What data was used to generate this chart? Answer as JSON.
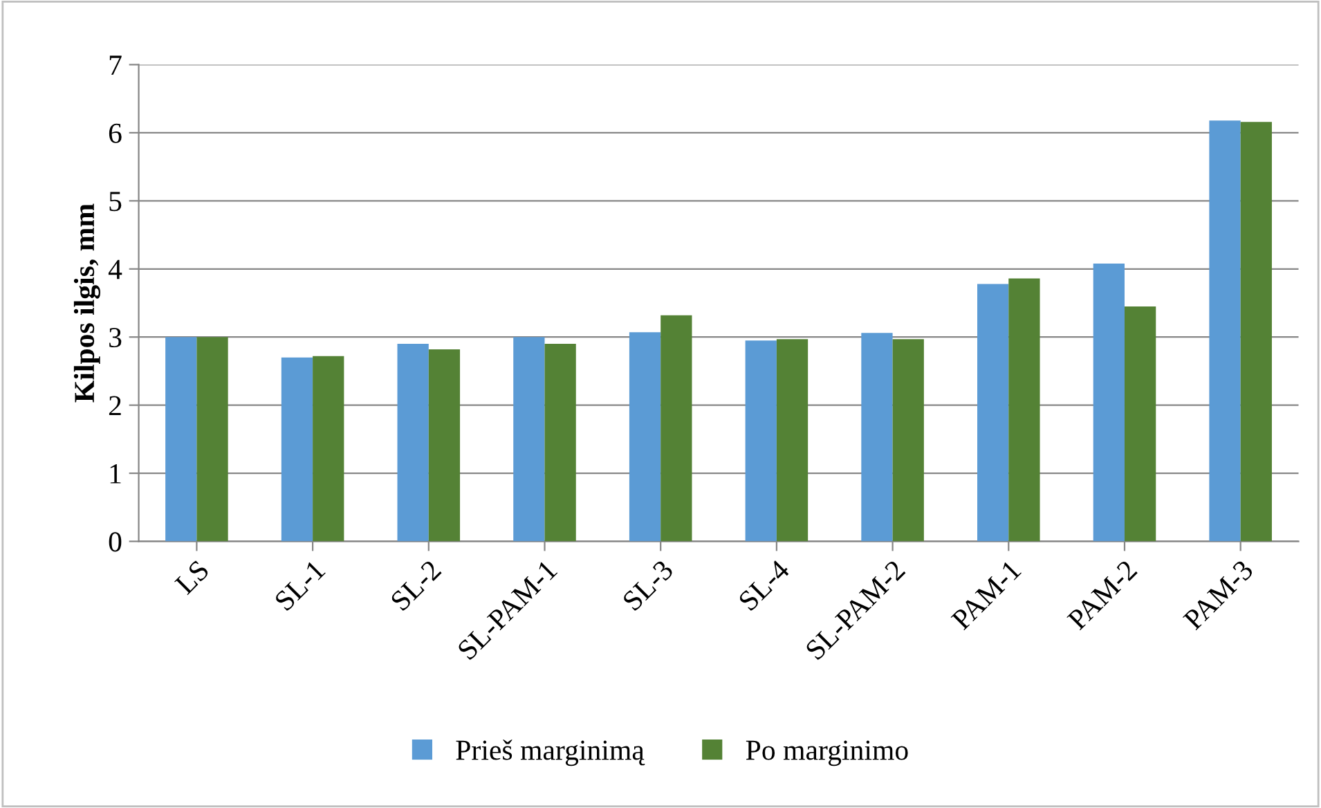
{
  "chart_data": {
    "type": "bar",
    "ylabel": "Kilpos ilgis, mm",
    "categories": [
      "LS",
      "SL-1",
      "SL-2",
      "SL-PAM-1",
      "SL-3",
      "SL-4",
      "SL-PAM-2",
      "PAM-1",
      "PAM-2",
      "PAM-3"
    ],
    "series": [
      {
        "name": "Prieš marginimą",
        "color": "#5b9bd5",
        "values": [
          3.0,
          2.7,
          2.9,
          3.0,
          3.07,
          2.95,
          3.06,
          3.78,
          4.08,
          6.18
        ]
      },
      {
        "name": "Po marginimo",
        "color": "#548235",
        "values": [
          3.0,
          2.72,
          2.82,
          2.9,
          3.32,
          2.97,
          2.97,
          3.86,
          3.45,
          6.16
        ]
      }
    ],
    "ylim": [
      0,
      7
    ],
    "yticks": [
      0,
      1,
      2,
      3,
      4,
      5,
      6,
      7
    ],
    "grid": "y",
    "legend": "bottom"
  }
}
